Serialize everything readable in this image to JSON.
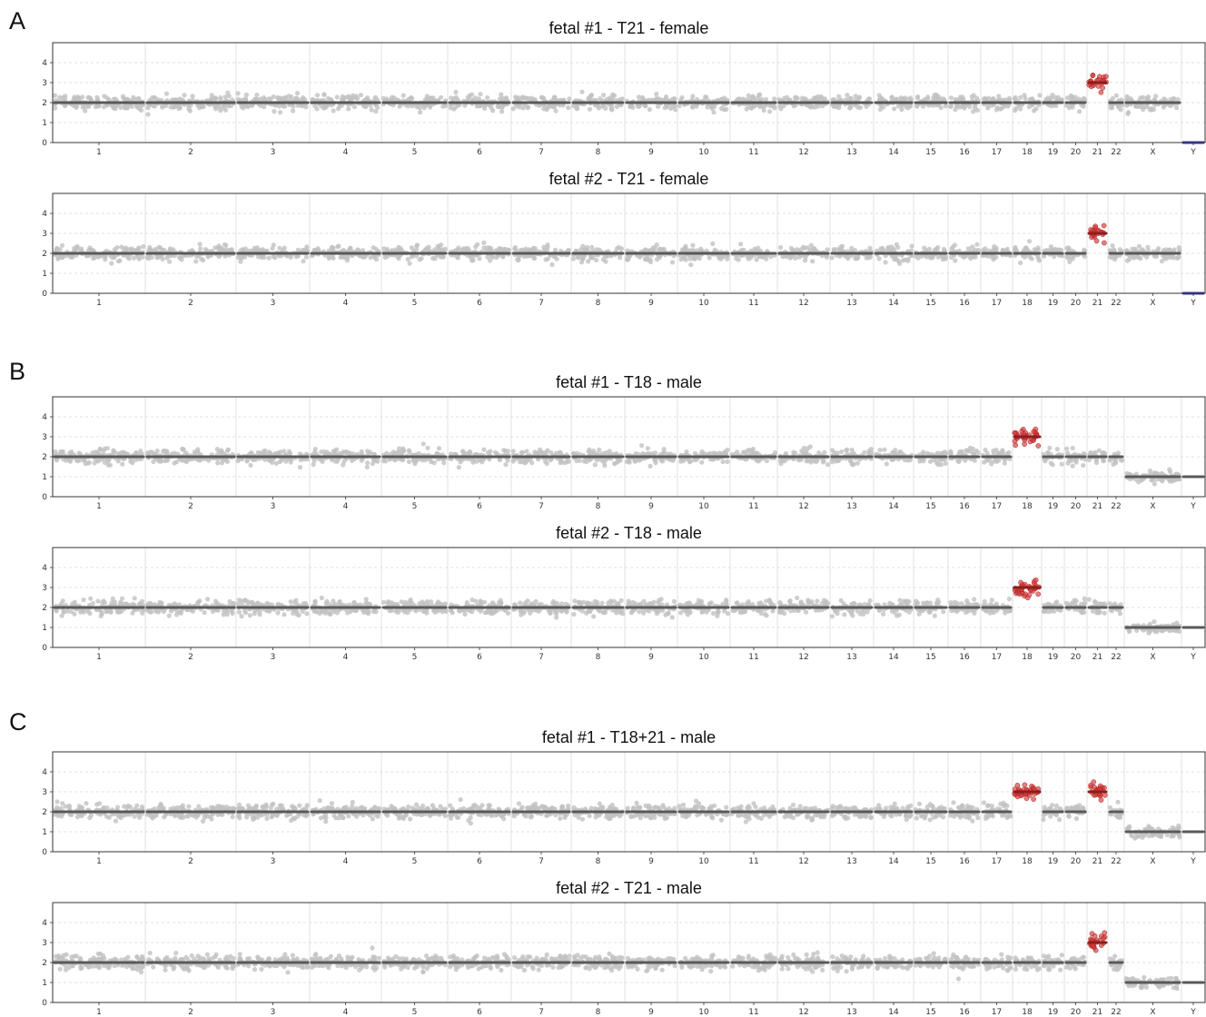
{
  "panels": [
    {
      "letter": "A"
    },
    {
      "letter": "B"
    },
    {
      "letter": "C"
    }
  ],
  "colors": {
    "normal_points": "#c2c2c2",
    "segment_line": "#595959",
    "aneuploid_points": "#d33a3a",
    "aneuploid_segment": "#8b1e1e",
    "y_segment": "#3a3ab0",
    "grid": "#d9d9d9"
  },
  "chart_data": [
    {
      "type": "scatter",
      "panel": "A",
      "title": "fetal #1 - T21 - female",
      "xlabel": "",
      "ylabel": "",
      "ylim": [
        0,
        5
      ],
      "yticks": [
        "0",
        "1",
        "2",
        "3",
        "4"
      ],
      "grid": true,
      "categories": [
        "1",
        "2",
        "3",
        "4",
        "5",
        "6",
        "7",
        "8",
        "9",
        "10",
        "11",
        "12",
        "13",
        "14",
        "15",
        "16",
        "17",
        "18",
        "19",
        "20",
        "21",
        "22",
        "X",
        "Y"
      ],
      "copy_number": [
        2,
        2,
        2,
        2,
        2,
        2,
        2,
        2,
        2,
        2,
        2,
        2,
        2,
        2,
        2,
        2,
        2,
        2,
        2,
        2,
        3,
        2,
        2,
        0
      ],
      "highlighted": [
        "21"
      ]
    },
    {
      "type": "scatter",
      "panel": "A",
      "title": "fetal #2 - T21 - female",
      "xlabel": "",
      "ylabel": "",
      "ylim": [
        0,
        5
      ],
      "yticks": [
        "0",
        "1",
        "2",
        "3",
        "4"
      ],
      "grid": true,
      "categories": [
        "1",
        "2",
        "3",
        "4",
        "5",
        "6",
        "7",
        "8",
        "9",
        "10",
        "11",
        "12",
        "13",
        "14",
        "15",
        "16",
        "17",
        "18",
        "19",
        "20",
        "21",
        "22",
        "X",
        "Y"
      ],
      "copy_number": [
        2,
        2,
        2,
        2,
        2,
        2,
        2,
        2,
        2,
        2,
        2,
        2,
        2,
        2,
        2,
        2,
        2,
        2,
        2,
        2,
        3,
        2,
        2,
        0
      ],
      "highlighted": [
        "21"
      ]
    },
    {
      "type": "scatter",
      "panel": "B",
      "title": "fetal #1 - T18 - male",
      "xlabel": "",
      "ylabel": "",
      "ylim": [
        0,
        5
      ],
      "yticks": [
        "0",
        "1",
        "2",
        "3",
        "4"
      ],
      "grid": true,
      "categories": [
        "1",
        "2",
        "3",
        "4",
        "5",
        "6",
        "7",
        "8",
        "9",
        "10",
        "11",
        "12",
        "13",
        "14",
        "15",
        "16",
        "17",
        "18",
        "19",
        "20",
        "21",
        "22",
        "X",
        "Y"
      ],
      "copy_number": [
        2,
        2,
        2,
        2,
        2,
        2,
        2,
        2,
        2,
        2,
        2,
        2,
        2,
        2,
        2,
        2,
        2,
        3,
        2,
        2,
        2,
        2,
        1,
        1
      ],
      "highlighted": [
        "18"
      ]
    },
    {
      "type": "scatter",
      "panel": "B",
      "title": "fetal #2 - T18 - male",
      "xlabel": "",
      "ylabel": "",
      "ylim": [
        0,
        5
      ],
      "yticks": [
        "0",
        "1",
        "2",
        "3",
        "4"
      ],
      "grid": true,
      "categories": [
        "1",
        "2",
        "3",
        "4",
        "5",
        "6",
        "7",
        "8",
        "9",
        "10",
        "11",
        "12",
        "13",
        "14",
        "15",
        "16",
        "17",
        "18",
        "19",
        "20",
        "21",
        "22",
        "X",
        "Y"
      ],
      "copy_number": [
        2,
        2,
        2,
        2,
        2,
        2,
        2,
        2,
        2,
        2,
        2,
        2,
        2,
        2,
        2,
        2,
        2,
        3,
        2,
        2,
        2,
        2,
        1,
        1
      ],
      "highlighted": [
        "18"
      ]
    },
    {
      "type": "scatter",
      "panel": "C",
      "title": "fetal #1 - T18+21 - male",
      "xlabel": "",
      "ylabel": "",
      "ylim": [
        0,
        5
      ],
      "yticks": [
        "0",
        "1",
        "2",
        "3",
        "4"
      ],
      "grid": true,
      "categories": [
        "1",
        "2",
        "3",
        "4",
        "5",
        "6",
        "7",
        "8",
        "9",
        "10",
        "11",
        "12",
        "13",
        "14",
        "15",
        "16",
        "17",
        "18",
        "19",
        "20",
        "21",
        "22",
        "X",
        "Y"
      ],
      "copy_number": [
        2,
        2,
        2,
        2,
        2,
        2,
        2,
        2,
        2,
        2,
        2,
        2,
        2,
        2,
        2,
        2,
        2,
        3,
        2,
        2,
        3,
        2,
        1,
        1
      ],
      "highlighted": [
        "18",
        "21"
      ]
    },
    {
      "type": "scatter",
      "panel": "C",
      "title": "fetal #2 - T21 - male",
      "xlabel": "",
      "ylabel": "",
      "ylim": [
        0,
        5
      ],
      "yticks": [
        "0",
        "1",
        "2",
        "3",
        "4"
      ],
      "grid": true,
      "categories": [
        "1",
        "2",
        "3",
        "4",
        "5",
        "6",
        "7",
        "8",
        "9",
        "10",
        "11",
        "12",
        "13",
        "14",
        "15",
        "16",
        "17",
        "18",
        "19",
        "20",
        "21",
        "22",
        "X",
        "Y"
      ],
      "copy_number": [
        2,
        2,
        2,
        2,
        2,
        2,
        2,
        2,
        2,
        2,
        2,
        2,
        2,
        2,
        2,
        2,
        2,
        2,
        2,
        2,
        3,
        2,
        1,
        1
      ],
      "highlighted": [
        "21"
      ]
    }
  ]
}
